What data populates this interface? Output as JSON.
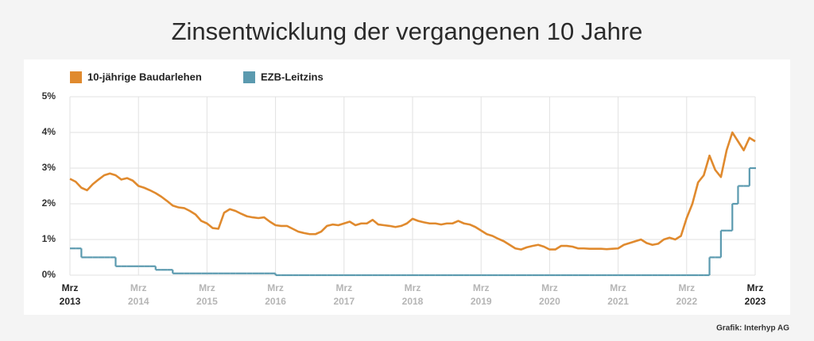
{
  "chart_data": {
    "type": "line",
    "title": "Zinsentwicklung der vergangenen 10 Jahre",
    "source": "Grafik: Interhyp AG",
    "x": [
      "2013-03",
      "2013-04",
      "2013-05",
      "2013-06",
      "2013-07",
      "2013-08",
      "2013-09",
      "2013-10",
      "2013-11",
      "2013-12",
      "2014-01",
      "2014-02",
      "2014-03",
      "2014-04",
      "2014-05",
      "2014-06",
      "2014-07",
      "2014-08",
      "2014-09",
      "2014-10",
      "2014-11",
      "2014-12",
      "2015-01",
      "2015-02",
      "2015-03",
      "2015-04",
      "2015-05",
      "2015-06",
      "2015-07",
      "2015-08",
      "2015-09",
      "2015-10",
      "2015-11",
      "2015-12",
      "2016-01",
      "2016-02",
      "2016-03",
      "2016-04",
      "2016-05",
      "2016-06",
      "2016-07",
      "2016-08",
      "2016-09",
      "2016-10",
      "2016-11",
      "2016-12",
      "2017-01",
      "2017-02",
      "2017-03",
      "2017-04",
      "2017-05",
      "2017-06",
      "2017-07",
      "2017-08",
      "2017-09",
      "2017-10",
      "2017-11",
      "2017-12",
      "2018-01",
      "2018-02",
      "2018-03",
      "2018-04",
      "2018-05",
      "2018-06",
      "2018-07",
      "2018-08",
      "2018-09",
      "2018-10",
      "2018-11",
      "2018-12",
      "2019-01",
      "2019-02",
      "2019-03",
      "2019-04",
      "2019-05",
      "2019-06",
      "2019-07",
      "2019-08",
      "2019-09",
      "2019-10",
      "2019-11",
      "2019-12",
      "2020-01",
      "2020-02",
      "2020-03",
      "2020-04",
      "2020-05",
      "2020-06",
      "2020-07",
      "2020-08",
      "2020-09",
      "2020-10",
      "2020-11",
      "2020-12",
      "2021-01",
      "2021-02",
      "2021-03",
      "2021-04",
      "2021-05",
      "2021-06",
      "2021-07",
      "2021-08",
      "2021-09",
      "2021-10",
      "2021-11",
      "2021-12",
      "2022-01",
      "2022-02",
      "2022-03",
      "2022-04",
      "2022-05",
      "2022-06",
      "2022-07",
      "2022-08",
      "2022-09",
      "2022-10",
      "2022-11",
      "2022-12",
      "2023-01",
      "2023-02",
      "2023-03"
    ],
    "series": [
      {
        "name": "10-jährige Baudarlehen",
        "color": "#e08a2e",
        "step": false,
        "values": [
          2.7,
          2.62,
          2.45,
          2.38,
          2.55,
          2.68,
          2.8,
          2.85,
          2.8,
          2.68,
          2.72,
          2.65,
          2.5,
          2.45,
          2.38,
          2.3,
          2.2,
          2.08,
          1.95,
          1.9,
          1.88,
          1.8,
          1.7,
          1.52,
          1.45,
          1.32,
          1.3,
          1.75,
          1.85,
          1.8,
          1.72,
          1.65,
          1.62,
          1.6,
          1.62,
          1.5,
          1.4,
          1.38,
          1.38,
          1.3,
          1.22,
          1.18,
          1.15,
          1.15,
          1.22,
          1.38,
          1.42,
          1.4,
          1.45,
          1.5,
          1.4,
          1.45,
          1.45,
          1.55,
          1.42,
          1.4,
          1.38,
          1.35,
          1.38,
          1.45,
          1.58,
          1.52,
          1.48,
          1.45,
          1.45,
          1.42,
          1.45,
          1.45,
          1.52,
          1.45,
          1.42,
          1.35,
          1.25,
          1.15,
          1.1,
          1.02,
          0.95,
          0.85,
          0.75,
          0.72,
          0.78,
          0.82,
          0.85,
          0.8,
          0.72,
          0.72,
          0.82,
          0.82,
          0.8,
          0.75,
          0.75,
          0.74,
          0.74,
          0.74,
          0.73,
          0.74,
          0.75,
          0.85,
          0.9,
          0.95,
          1.0,
          0.9,
          0.85,
          0.88,
          1.0,
          1.05,
          1.0,
          1.1,
          1.6,
          2.0,
          2.6,
          2.8,
          3.35,
          2.95,
          2.75,
          3.5,
          4.0,
          3.75,
          3.5,
          3.85,
          3.75
        ]
      },
      {
        "name": "EZB-Leitzins",
        "color": "#5b9aaf",
        "step": true,
        "values": [
          0.75,
          0.75,
          0.5,
          0.5,
          0.5,
          0.5,
          0.5,
          0.5,
          0.25,
          0.25,
          0.25,
          0.25,
          0.25,
          0.25,
          0.25,
          0.15,
          0.15,
          0.15,
          0.05,
          0.05,
          0.05,
          0.05,
          0.05,
          0.05,
          0.05,
          0.05,
          0.05,
          0.05,
          0.05,
          0.05,
          0.05,
          0.05,
          0.05,
          0.05,
          0.05,
          0.05,
          0,
          0,
          0,
          0,
          0,
          0,
          0,
          0,
          0,
          0,
          0,
          0,
          0,
          0,
          0,
          0,
          0,
          0,
          0,
          0,
          0,
          0,
          0,
          0,
          0,
          0,
          0,
          0,
          0,
          0,
          0,
          0,
          0,
          0,
          0,
          0,
          0,
          0,
          0,
          0,
          0,
          0,
          0,
          0,
          0,
          0,
          0,
          0,
          0,
          0,
          0,
          0,
          0,
          0,
          0,
          0,
          0,
          0,
          0,
          0,
          0,
          0,
          0,
          0,
          0,
          0,
          0,
          0,
          0,
          0,
          0,
          0,
          0,
          0,
          0,
          0,
          0.5,
          0.5,
          1.25,
          1.25,
          2.0,
          2.5,
          2.5,
          3.0,
          3.0
        ]
      }
    ],
    "xlim": [
      "2013-03",
      "2023-03"
    ],
    "xticks": [
      {
        "value": "2013-03",
        "label": [
          "Mrz",
          "2013"
        ]
      },
      {
        "value": "2014-03",
        "label": [
          "Mrz",
          "2014"
        ]
      },
      {
        "value": "2015-03",
        "label": [
          "Mrz",
          "2015"
        ]
      },
      {
        "value": "2016-03",
        "label": [
          "Mrz",
          "2016"
        ]
      },
      {
        "value": "2017-03",
        "label": [
          "Mrz",
          "2017"
        ]
      },
      {
        "value": "2018-03",
        "label": [
          "Mrz",
          "2018"
        ]
      },
      {
        "value": "2019-03",
        "label": [
          "Mrz",
          "2019"
        ]
      },
      {
        "value": "2020-03",
        "label": [
          "Mrz",
          "2020"
        ]
      },
      {
        "value": "2021-03",
        "label": [
          "Mrz",
          "2021"
        ]
      },
      {
        "value": "2022-03",
        "label": [
          "Mrz",
          "2022"
        ]
      },
      {
        "value": "2023-03",
        "label": [
          "Mrz",
          "2023"
        ]
      }
    ],
    "ylim": [
      0,
      5
    ],
    "yticks": [
      {
        "value": 0,
        "label": "0%"
      },
      {
        "value": 1,
        "label": "1%"
      },
      {
        "value": 2,
        "label": "2%"
      },
      {
        "value": 3,
        "label": "3%"
      },
      {
        "value": 4,
        "label": "4%"
      },
      {
        "value": 5,
        "label": "5%"
      }
    ],
    "grid": true,
    "legend": "top-left"
  }
}
